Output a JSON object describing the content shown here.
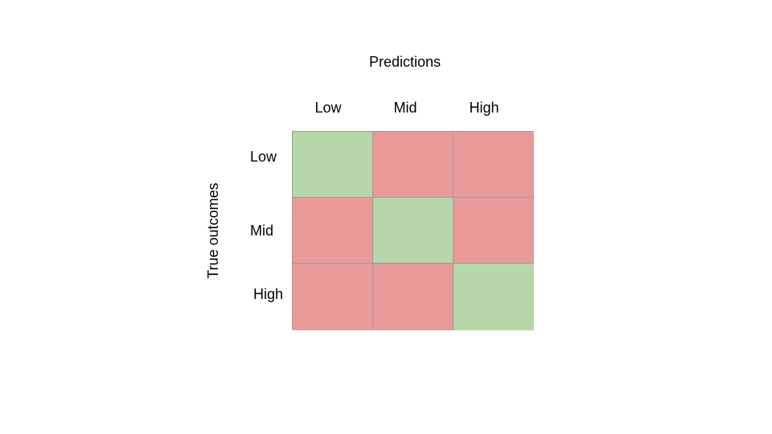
{
  "x_axis_title": "Predictions",
  "y_axis_title": "True outcomes",
  "columns": [
    "Low",
    "Mid",
    "High"
  ],
  "rows": [
    "Low",
    "Mid",
    "High"
  ],
  "colors": {
    "correct": "#b6d7a8",
    "incorrect": "#ea9999",
    "grid_line": "#9a9a9a"
  },
  "matrix": [
    [
      "correct",
      "incorrect",
      "incorrect"
    ],
    [
      "incorrect",
      "correct",
      "incorrect"
    ],
    [
      "incorrect",
      "incorrect",
      "correct"
    ]
  ]
}
